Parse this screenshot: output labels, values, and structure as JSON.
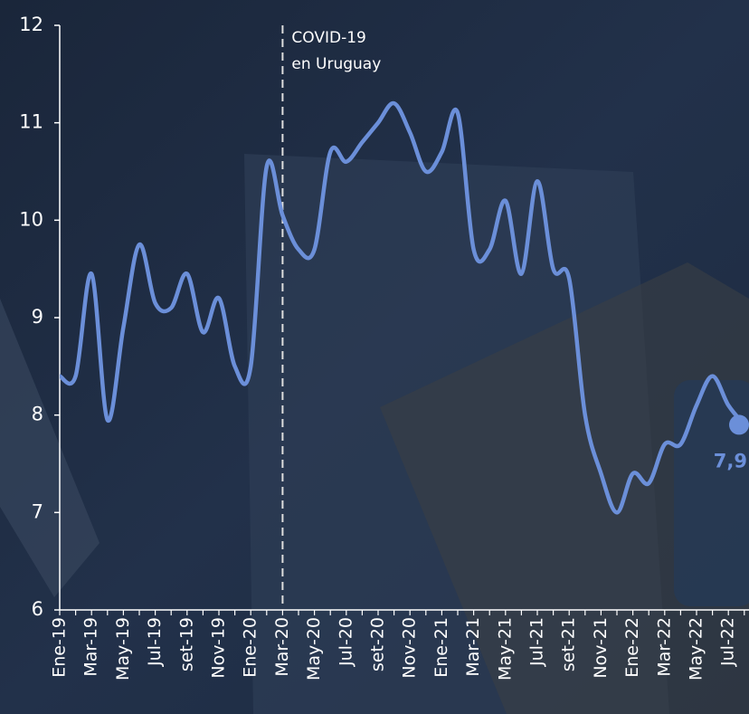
{
  "chart_data": {
    "type": "line",
    "categories": [
      "Ene-19",
      null,
      "Mar-19",
      null,
      "May-19",
      null,
      "Jul-19",
      null,
      "set-19",
      null,
      "Nov-19",
      null,
      "Ene-20",
      null,
      "Mar-20",
      null,
      "May-20",
      null,
      "Jul-20",
      null,
      "set-20",
      null,
      "Nov-20",
      null,
      "Ene-21",
      null,
      "Mar-21",
      null,
      "May-21",
      null,
      "Jul-21",
      null,
      "set-21",
      null,
      "Nov-21",
      null,
      "Ene-22",
      null,
      "Mar-22",
      null,
      "May-22",
      null,
      "Jul-22",
      null
    ],
    "series": [
      {
        "color": "#6b8fd9",
        "values": [
          8.4,
          8.4,
          9.45,
          7.95,
          8.9,
          9.75,
          9.15,
          9.1,
          9.45,
          8.85,
          9.2,
          8.5,
          8.5,
          10.55,
          10.05,
          9.7,
          9.7,
          10.7,
          10.6,
          10.8,
          11.0,
          11.2,
          10.9,
          10.5,
          10.7,
          11.1,
          9.7,
          9.7,
          10.2,
          9.45,
          10.4,
          9.5,
          9.4,
          8.0,
          7.4,
          7.0,
          7.4,
          7.3,
          7.7,
          7.7,
          8.1,
          8.4,
          8.1,
          7.9
        ],
        "value_labels": [
          null,
          null,
          null,
          null,
          null,
          null,
          null,
          null,
          null,
          null,
          null,
          null,
          null,
          null,
          null,
          null,
          null,
          null,
          null,
          null,
          null,
          null,
          null,
          null,
          null,
          null,
          null,
          null,
          null,
          null,
          null,
          null,
          null,
          null,
          null,
          null,
          null,
          null,
          null,
          null,
          null,
          null,
          null,
          "7,9"
        ]
      }
    ],
    "ylim": [
      6,
      12
    ],
    "yticks": [
      6,
      7,
      8,
      9,
      10,
      11,
      12
    ],
    "annotation": {
      "x": "Mar-20",
      "lines": [
        "COVID-19",
        "en Uruguay"
      ]
    }
  }
}
